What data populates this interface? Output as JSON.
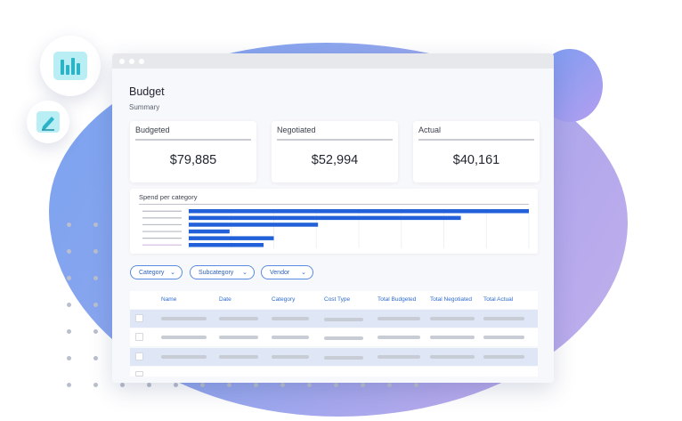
{
  "window": {
    "title": "Budget",
    "subtitle": "Summary"
  },
  "cards": [
    {
      "label": "Budgeted",
      "value": "$79,885"
    },
    {
      "label": "Negotiated",
      "value": "$52,994"
    },
    {
      "label": "Actual",
      "value": "$40,161"
    }
  ],
  "spend_chart": {
    "title": "Spend per category",
    "chart_data": {
      "type": "bar",
      "orientation": "horizontal",
      "title": "Spend per category",
      "categories": [
        "",
        "",
        "",
        "",
        "",
        ""
      ],
      "values": [
        100,
        80,
        38,
        12,
        25,
        22
      ],
      "bar_color": "#2160d9",
      "grid": true
    }
  },
  "filters": [
    {
      "label": "Category"
    },
    {
      "label": "Subcategory"
    },
    {
      "label": "Vendor"
    }
  ],
  "table": {
    "columns": [
      "Name",
      "Date",
      "Category",
      "Cost Type",
      "Total Budgeted",
      "Total Negotiated",
      "Total Actual"
    ]
  },
  "icons": {
    "chart_badge": "bar-chart-icon",
    "pen_badge": "pen-icon"
  },
  "colors": {
    "accent": "#2e6bd0",
    "bar": "#2160d9"
  }
}
